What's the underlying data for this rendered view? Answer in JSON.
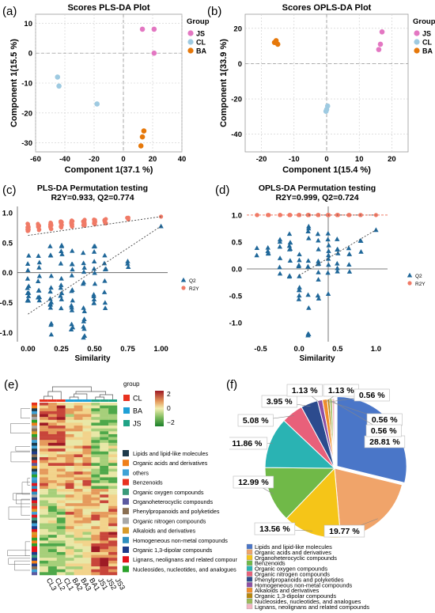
{
  "panels": {
    "a": {
      "label": "(a)",
      "chart_data": {
        "type": "scatter",
        "title": "Scores PLS-DA Plot",
        "xlabel": "Component 1(37.1 %)",
        "ylabel": "Component 1(15.5 %)",
        "xlim": [
          -60,
          40
        ],
        "ylim": [
          -33,
          13
        ],
        "xticks": [
          "-60",
          "-40",
          "-20",
          "0",
          "20",
          "40"
        ],
        "yticks": [
          "10",
          "0",
          "-10",
          "-20",
          "-30"
        ],
        "legend_title": "Group",
        "series": [
          {
            "name": "JS",
            "color": "#e377c2",
            "points": [
              [
                13,
                8
              ],
              [
                21,
                8
              ],
              [
                21,
                0
              ]
            ]
          },
          {
            "name": "CL",
            "color": "#9ecae1",
            "points": [
              [
                -45,
                -8
              ],
              [
                -44,
                -11
              ],
              [
                -18,
                -17
              ]
            ]
          },
          {
            "name": "BA",
            "color": "#e6780a",
            "points": [
              [
                14,
                -26
              ],
              [
                13,
                -28
              ],
              [
                12,
                -31
              ]
            ]
          }
        ]
      }
    },
    "b": {
      "label": "(b)",
      "chart_data": {
        "type": "scatter",
        "title": "Scores OPLS-DA Plot",
        "xlabel": "Component 1(15.4 %)",
        "ylabel": "Component 1(33.9 %)",
        "xlim": [
          -25,
          25
        ],
        "ylim": [
          -50,
          28
        ],
        "xticks": [
          "-20",
          "-10",
          "0",
          "10",
          "20"
        ],
        "yticks": [
          "20",
          "0",
          "-20",
          "-40"
        ],
        "legend_title": "Group",
        "series": [
          {
            "name": "JS",
            "color": "#e377c2",
            "points": [
              [
                17,
                18
              ],
              [
                16.5,
                11
              ],
              [
                16,
                8
              ]
            ]
          },
          {
            "name": "CL",
            "color": "#9ecae1",
            "points": [
              [
                0.3,
                -24
              ],
              [
                0,
                -26
              ],
              [
                -0.2,
                -27
              ]
            ]
          },
          {
            "name": "BA",
            "color": "#e6780a",
            "points": [
              [
                -16,
                12
              ],
              [
                -15,
                11
              ],
              [
                -15.5,
                13
              ]
            ]
          }
        ]
      }
    },
    "c": {
      "label": "(c)",
      "chart_data": {
        "type": "scatter",
        "title": "PLS-DA Permutation testing",
        "subtitle": "R2Y=0.933,  Q2=0.774",
        "xlabel": "Similarity",
        "ylabel": "",
        "xlim": [
          -0.08,
          1.05
        ],
        "ylim": [
          -1.15,
          1.05
        ],
        "xticks": [
          "0.00",
          "0.25",
          "0.50",
          "0.75",
          "1.00"
        ],
        "yticks": [
          "1.0",
          "0.5",
          "0.0",
          "-0.5",
          "-1.0"
        ],
        "legend": [
          "Q2",
          "R2Y"
        ],
        "r2y_intercept": 0.62,
        "r2y_end": 0.933,
        "q2_intercept": -0.69,
        "q2_end": 0.774
      }
    },
    "d": {
      "label": "(d)",
      "chart_data": {
        "type": "scatter",
        "title": "OPLS-DA Permutation testing",
        "subtitle": "R2Y=0.999,  Q2=0.724",
        "xlabel": "Similarity",
        "ylabel": "",
        "xlim": [
          -0.68,
          1.15
        ],
        "ylim": [
          -1.35,
          1.1
        ],
        "xticks": [
          "-0.5",
          "0.0",
          "0.5",
          "1.0"
        ],
        "yticks": [
          "1.0",
          "0.5",
          "0.0",
          "-0.5",
          "-1.0"
        ],
        "legend": [
          "Q2",
          "R2Y"
        ],
        "r2y_intercept": 0.999,
        "r2y_end": 0.999,
        "q2_intercept": -0.12,
        "q2_end": 0.724
      }
    },
    "e": {
      "label": "(e)",
      "chart_data": {
        "type": "heatmap",
        "columns": [
          "CL3",
          "CL2",
          "CL1",
          "BA2",
          "BA3",
          "BA1",
          "JS1",
          "JS2",
          "JS3"
        ],
        "groups": [
          {
            "name": "CL",
            "color": "#e8311f"
          },
          {
            "name": "BA",
            "color": "#1fa0d6"
          },
          {
            "name": "JS",
            "color": "#1fa386"
          }
        ],
        "colorbar_ticks": [
          "2",
          "0",
          "−2"
        ],
        "group_legend_title": "group",
        "class_legend": [
          {
            "name": "Lipids and lipid-like molecules",
            "color": "#1e3a4a"
          },
          {
            "name": "Organic acids and derivatives",
            "color": "#ef7f1a"
          },
          {
            "name": "others",
            "color": "#3fa2d6"
          },
          {
            "name": "Benzenoids",
            "color": "#e8311f"
          },
          {
            "name": "Organic oxygen compounds",
            "color": "#3b9a7a"
          },
          {
            "name": "Organoheterocyclic compounds",
            "color": "#5c5aa0"
          },
          {
            "name": "Phenylpropanoids and polyketides",
            "color": "#8a6f52"
          },
          {
            "name": "Organic nitrogen compounds",
            "color": "#a8a8a8"
          },
          {
            "name": "Alkaloids and derivatives",
            "color": "#d89b2a"
          },
          {
            "name": "Homogeneous non-metal compounds",
            "color": "#2f8fbf"
          },
          {
            "name": "Organic 1,3-dipolar compounds",
            "color": "#1f3b8a"
          },
          {
            "name": "Lignans, neolignans and related compounds",
            "color": "#e3141c"
          },
          {
            "name": "Nucleosides, nucleotides, and analogues",
            "color": "#2aa12a"
          }
        ]
      }
    },
    "f": {
      "label": "(f)",
      "chart_data": {
        "type": "pie",
        "slices": [
          {
            "name": "Lipids and lipid-like molecules",
            "value": 28.81,
            "label": "28.81 %",
            "color": "#4a76c8"
          },
          {
            "name": "Organic acids and derivatives",
            "value": 19.77,
            "label": "19.77 %",
            "color": "#f0a46a"
          },
          {
            "name": "Organoheterocyclic compounds",
            "value": 13.56,
            "label": "13.56 %",
            "color": "#f5c518"
          },
          {
            "name": "Benzenoids",
            "value": 12.99,
            "label": "12.99 %",
            "color": "#70b948"
          },
          {
            "name": "Organic oxygen compounds",
            "value": 11.86,
            "label": "11.86 %",
            "color": "#2ab3b3"
          },
          {
            "name": "Organic nitrogen compounds",
            "value": 5.08,
            "label": "5.08 %",
            "color": "#e8607a"
          },
          {
            "name": "Phenylpropanoids and polyketides",
            "value": 3.95,
            "label": "3.95 %",
            "color": "#2c4b8e"
          },
          {
            "name": "Homogeneous non-metal compounds",
            "value": 1.13,
            "label": "1.13 %",
            "color": "#8d4fa5"
          },
          {
            "name": "Alkaloids and derivatives",
            "value": 1.13,
            "label": "1.13 %",
            "color": "#f28e2b"
          },
          {
            "name": "Organic 1,3-dipolar compounds",
            "value": 0.56,
            "label": "0.56 %",
            "color": "#b8860b"
          },
          {
            "name": "Nucleosides, nucleotides, and analogues",
            "value": 0.56,
            "label": "0.56 %",
            "color": "#9bbb59"
          },
          {
            "name": "Lignans, neolignans and related compounds",
            "value": 0.56,
            "label": "0.56 %",
            "color": "#f4b6c2"
          }
        ]
      }
    }
  }
}
